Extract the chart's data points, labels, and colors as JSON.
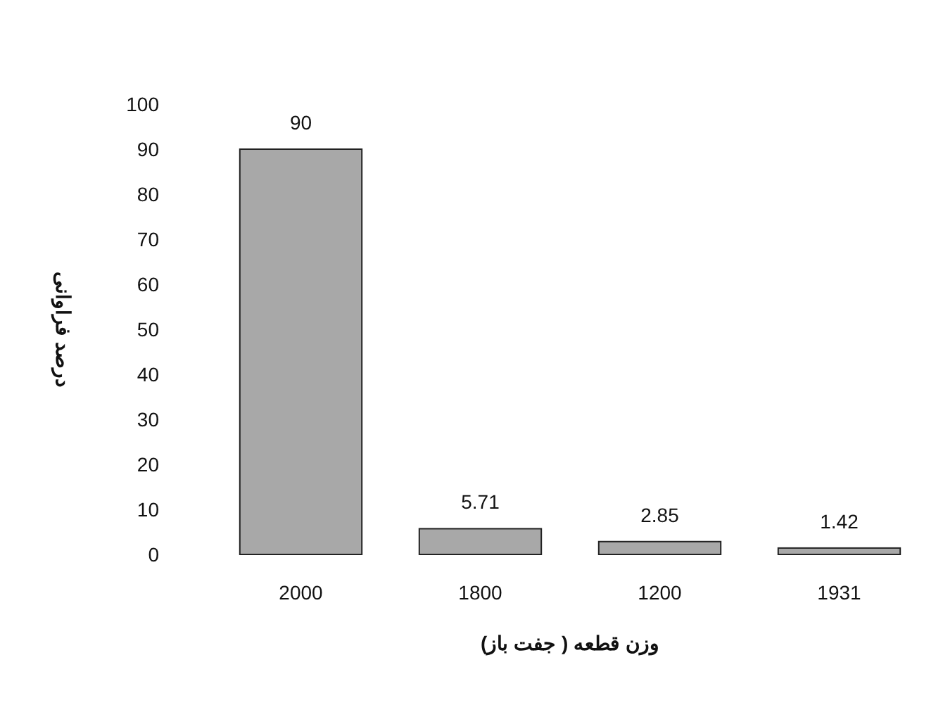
{
  "chart_data": {
    "type": "bar",
    "xlabel": "وزن قطعه ( جفت باز)",
    "ylabel": "درصد فراوانی",
    "categories": [
      "2000",
      "1800",
      "1200",
      "1931"
    ],
    "values": [
      90,
      5.71,
      2.85,
      1.42
    ],
    "color": "#a8a8a8",
    "ylim": [
      0,
      100
    ],
    "yticks": [
      0,
      10,
      20,
      30,
      40,
      50,
      60,
      70,
      80,
      90,
      100
    ],
    "data_labels": true
  }
}
